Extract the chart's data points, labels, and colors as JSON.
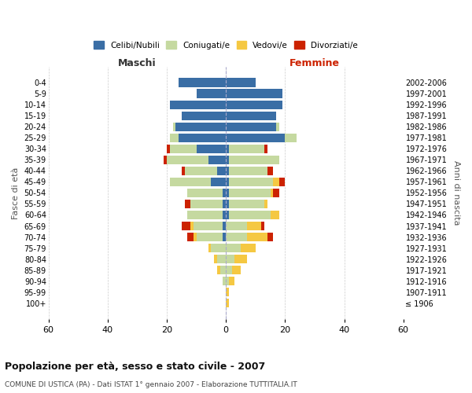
{
  "age_groups": [
    "100+",
    "95-99",
    "90-94",
    "85-89",
    "80-84",
    "75-79",
    "70-74",
    "65-69",
    "60-64",
    "55-59",
    "50-54",
    "45-49",
    "40-44",
    "35-39",
    "30-34",
    "25-29",
    "20-24",
    "15-19",
    "10-14",
    "5-9",
    "0-4"
  ],
  "birth_years": [
    "≤ 1906",
    "1907-1911",
    "1912-1916",
    "1917-1921",
    "1922-1926",
    "1927-1931",
    "1932-1936",
    "1937-1941",
    "1942-1946",
    "1947-1951",
    "1952-1956",
    "1957-1961",
    "1962-1966",
    "1967-1971",
    "1972-1976",
    "1977-1981",
    "1982-1986",
    "1987-1991",
    "1992-1996",
    "1997-2001",
    "2002-2006"
  ],
  "colors": {
    "celibi": "#3a6ea5",
    "coniugati": "#c5d9a0",
    "vedovi": "#f5c842",
    "divorziati": "#cc2200"
  },
  "maschi": {
    "celibi": [
      0,
      0,
      0,
      0,
      0,
      0,
      1,
      1,
      1,
      1,
      1,
      5,
      3,
      6,
      10,
      16,
      17,
      15,
      19,
      10,
      16
    ],
    "coniugati": [
      0,
      0,
      1,
      2,
      3,
      5,
      9,
      10,
      12,
      11,
      12,
      14,
      11,
      14,
      9,
      3,
      1,
      0,
      0,
      0,
      0
    ],
    "vedovi": [
      0,
      0,
      0,
      1,
      1,
      1,
      1,
      1,
      0,
      0,
      0,
      0,
      0,
      0,
      0,
      0,
      0,
      0,
      0,
      0,
      0
    ],
    "divorziati": [
      0,
      0,
      0,
      0,
      0,
      0,
      2,
      3,
      0,
      2,
      0,
      0,
      1,
      1,
      1,
      0,
      0,
      0,
      0,
      0,
      0
    ]
  },
  "femmine": {
    "nubili": [
      0,
      0,
      0,
      0,
      0,
      0,
      0,
      0,
      1,
      1,
      1,
      1,
      1,
      1,
      1,
      20,
      17,
      17,
      19,
      19,
      10
    ],
    "coniugate": [
      0,
      0,
      1,
      2,
      3,
      5,
      7,
      7,
      14,
      12,
      14,
      15,
      13,
      17,
      12,
      4,
      1,
      0,
      0,
      0,
      0
    ],
    "vedove": [
      1,
      1,
      2,
      3,
      4,
      5,
      7,
      5,
      3,
      1,
      1,
      2,
      0,
      0,
      0,
      0,
      0,
      0,
      0,
      0,
      0
    ],
    "divorziate": [
      0,
      0,
      0,
      0,
      0,
      0,
      2,
      1,
      0,
      0,
      2,
      2,
      2,
      0,
      1,
      0,
      0,
      0,
      0,
      0,
      0
    ]
  },
  "title": "Popolazione per età, sesso e stato civile - 2007",
  "subtitle": "COMUNE DI USTICA (PA) - Dati ISTAT 1° gennaio 2007 - Elaborazione TUTTITALIA.IT",
  "xlabel_left": "Maschi",
  "xlabel_right": "Femmine",
  "ylabel_left": "Fasce di età",
  "ylabel_right": "Anni di nascita",
  "xlim": 60,
  "legend_labels": [
    "Celibi/Nubili",
    "Coniugati/e",
    "Vedovi/e",
    "Divorziati/e"
  ],
  "background_color": "#ffffff",
  "grid_color": "#cccccc"
}
